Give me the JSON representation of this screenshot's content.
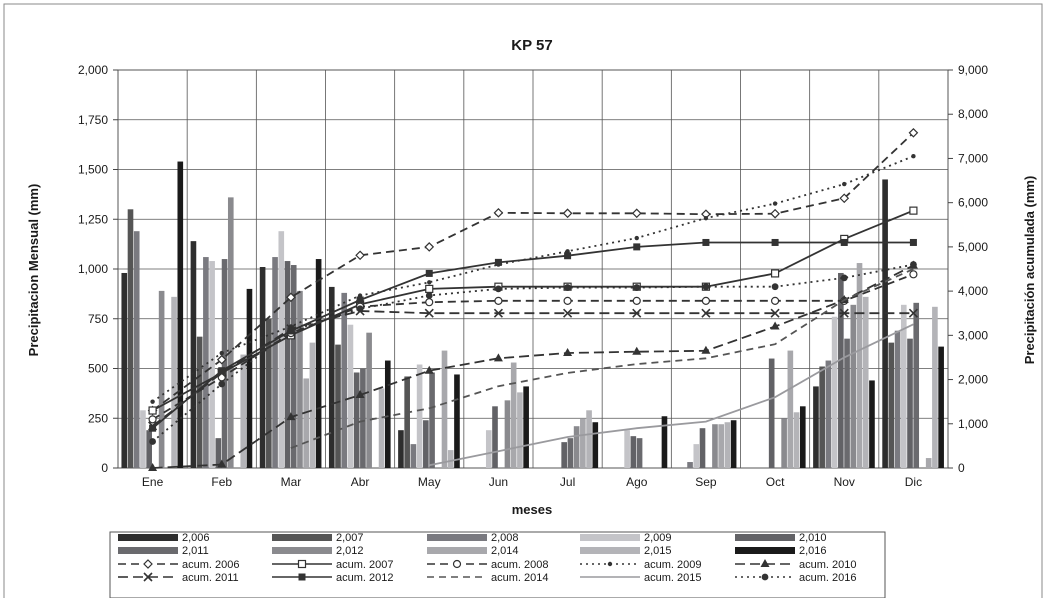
{
  "chart_data": {
    "type": "bar",
    "title": "KP 57",
    "xlabel": "meses",
    "ylabel": "Precipitacion Mensual (mm)",
    "y2label": "Precipitación acumulada (mm)",
    "ylim": [
      0,
      2000
    ],
    "y2lim": [
      0,
      9000
    ],
    "yticks": [
      "0",
      "250",
      "500",
      "750",
      "1,000",
      "1,250",
      "1,500",
      "1,750",
      "2,000"
    ],
    "y2ticks": [
      "0",
      "1,000",
      "2,000",
      "3,000",
      "4,000",
      "5,000",
      "6,000",
      "7,000",
      "8,000",
      "9,000"
    ],
    "grid": true,
    "legend_position": "bottom",
    "categories": [
      "Ene",
      "Feb",
      "Mar",
      "Abr",
      "May",
      "Jun",
      "Jul",
      "Ago",
      "Sep",
      "Oct",
      "Nov",
      "Dic"
    ],
    "series": [
      {
        "name": "2,006",
        "color": "#2e2e2e",
        "values": [
          980,
          1140,
          1010,
          910,
          190,
          0,
          0,
          0,
          0,
          0,
          410,
          1450
        ]
      },
      {
        "name": "2,007",
        "color": "#555555",
        "values": [
          1300,
          660,
          750,
          620,
          460,
          0,
          0,
          0,
          0,
          0,
          510,
          630
        ]
      },
      {
        "name": "2,008",
        "color": "#7a7a80",
        "values": [
          1190,
          1060,
          1060,
          880,
          120,
          0,
          0,
          0,
          30,
          0,
          540,
          690
        ]
      },
      {
        "name": "2,009",
        "color": "#c4c4c8",
        "values": [
          290,
          1040,
          1190,
          720,
          520,
          190,
          0,
          190,
          120,
          0,
          760,
          820
        ]
      },
      {
        "name": "2,010",
        "color": "#626266",
        "values": [
          190,
          150,
          1040,
          480,
          240,
          310,
          130,
          160,
          200,
          550,
          980,
          650
        ]
      },
      {
        "name": "2,011",
        "color": "#6a6a6e",
        "values": [
          0,
          1050,
          1020,
          500,
          480,
          0,
          150,
          150,
          0,
          0,
          650,
          830
        ]
      },
      {
        "name": "2,012",
        "color": "#8a8a8e",
        "values": [
          890,
          1360,
          890,
          680,
          0,
          340,
          210,
          0,
          220,
          250,
          820,
          0
        ]
      },
      {
        "name": "2,014",
        "color": "#a8a8ac",
        "values": [
          0,
          0,
          450,
          0,
          590,
          530,
          250,
          0,
          220,
          590,
          1030,
          50
        ]
      },
      {
        "name": "2,015",
        "color": "#b4b4b8",
        "values": [
          860,
          570,
          630,
          400,
          90,
          380,
          290,
          0,
          230,
          280,
          860,
          810
        ]
      },
      {
        "name": "2,016",
        "color": "#1a1a1a",
        "values": [
          1540,
          900,
          1050,
          540,
          470,
          410,
          230,
          260,
          240,
          310,
          440,
          610
        ]
      }
    ],
    "cumulative_series": [
      {
        "name": "acum. 2006",
        "color": "#333333",
        "dash": "8 5",
        "marker": "diamond-open",
        "values": [
          1300,
          2450,
          3860,
          4810,
          5000,
          5770,
          5760,
          5760,
          5740,
          5750,
          6100,
          7580
        ]
      },
      {
        "name": "acum. 2007",
        "color": "#333333",
        "dash": "",
        "marker": "square-open",
        "values": [
          1300,
          2150,
          3000,
          3700,
          4050,
          4100,
          4100,
          4100,
          4100,
          4400,
          5180,
          5820
        ]
      },
      {
        "name": "acum. 2008",
        "color": "#333333",
        "dash": "8 5",
        "marker": "circle-open",
        "values": [
          1100,
          2050,
          3050,
          3650,
          3750,
          3780,
          3780,
          3780,
          3780,
          3780,
          3780,
          4380
        ]
      },
      {
        "name": "acum. 2009",
        "color": "#333333",
        "dash": "2 4",
        "marker": "dot",
        "values": [
          1500,
          2600,
          3200,
          3900,
          4200,
          4600,
          4900,
          5200,
          5650,
          5980,
          6420,
          7050
        ]
      },
      {
        "name": "acum. 2010",
        "color": "#333333",
        "dash": "10 5",
        "marker": "triangle",
        "values": [
          0,
          80,
          1150,
          1650,
          2200,
          2480,
          2600,
          2630,
          2650,
          3200,
          3800,
          4580
        ]
      },
      {
        "name": "acum. 2011",
        "color": "#333333",
        "dash": "10 5",
        "marker": "cross",
        "values": [
          950,
          2150,
          3150,
          3550,
          3500,
          3500,
          3500,
          3500,
          3500,
          3500,
          3500,
          3500
        ]
      },
      {
        "name": "acum. 2012",
        "color": "#333333",
        "dash": "",
        "marker": "square",
        "values": [
          900,
          2200,
          3100,
          3800,
          4400,
          4650,
          4800,
          5000,
          5100,
          5100,
          5100,
          5100
        ]
      },
      {
        "name": "acum. 2014",
        "color": "#555555",
        "dash": "7 5",
        "marker": "none",
        "values": [
          null,
          null,
          450,
          1050,
          1350,
          1850,
          2150,
          2350,
          2480,
          2800,
          3800,
          4500
        ]
      },
      {
        "name": "acum. 2015",
        "color": "#9a9a9e",
        "dash": "",
        "marker": "none",
        "values": [
          null,
          null,
          null,
          null,
          60,
          380,
          700,
          900,
          1050,
          1600,
          2500,
          3250
        ]
      },
      {
        "name": "acum. 2016",
        "color": "#333333",
        "dash": "2 4",
        "marker": "dot-large",
        "values": [
          600,
          1900,
          3100,
          3600,
          3900,
          4050,
          4080,
          4080,
          4100,
          4100,
          4300,
          4600
        ]
      }
    ]
  }
}
